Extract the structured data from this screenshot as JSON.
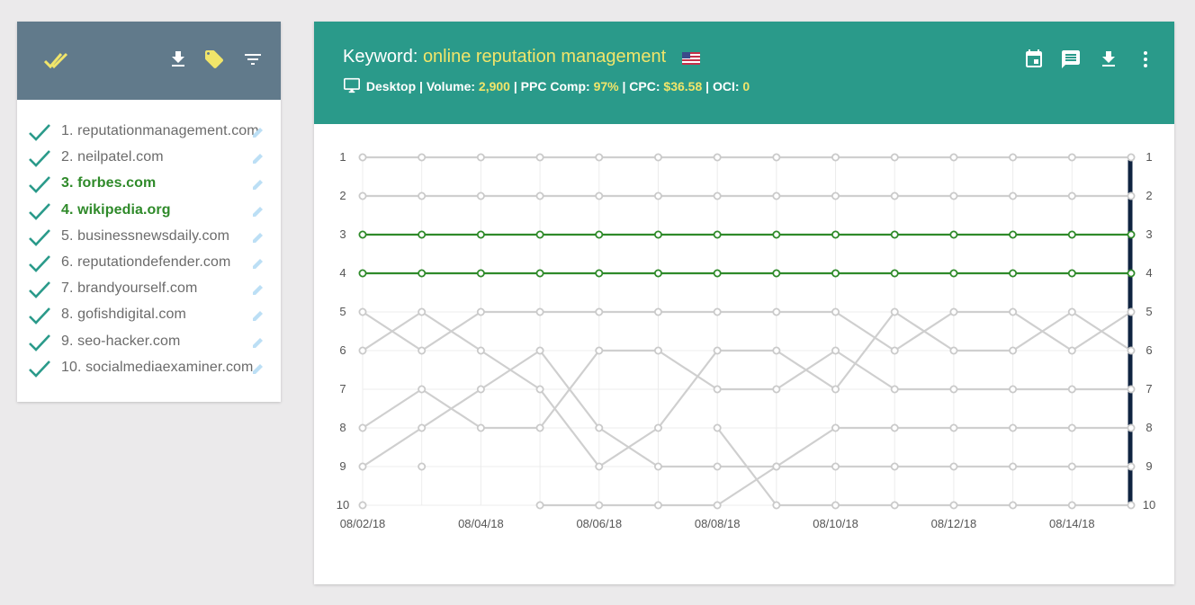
{
  "sidebar": {
    "icons": [
      "double-check-icon",
      "download-icon",
      "tag-icon",
      "filter-icon"
    ],
    "sites": [
      {
        "label": "1. reputationmanagement.com",
        "highlight": false
      },
      {
        "label": "2. neilpatel.com",
        "highlight": false
      },
      {
        "label": "3. forbes.com",
        "highlight": true
      },
      {
        "label": "4. wikipedia.org",
        "highlight": true
      },
      {
        "label": "5. businessnewsdaily.com",
        "highlight": false
      },
      {
        "label": "6. reputationdefender.com",
        "highlight": false
      },
      {
        "label": "7. brandyourself.com",
        "highlight": false
      },
      {
        "label": "8. gofishdigital.com",
        "highlight": false
      },
      {
        "label": "9. seo-hacker.com",
        "highlight": false
      },
      {
        "label": "10. socialmediaexaminer.com",
        "highlight": false
      }
    ]
  },
  "header": {
    "keyword_label": "Keyword:",
    "keyword": "online reputation management",
    "device": "Desktop",
    "volume_label": "Volume:",
    "volume": "2,900",
    "ppc_label": "PPC Comp:",
    "ppc": "97%",
    "cpc_label": "CPC:",
    "cpc": "$36.58",
    "oci_label": "OCI:",
    "oci": "0",
    "icons": [
      "calendar-icon",
      "comment-icon",
      "download-icon",
      "more-vert-icon"
    ]
  },
  "colors": {
    "sidebar_header": "#617a8b",
    "header": "#2a9a8a",
    "accent_yellow": "#f1e56a",
    "highlight_green": "#2f8a2a",
    "check_teal": "#2a9a8a",
    "grey_line": "#cfcfcf",
    "current_marker": "#0f2340"
  },
  "chart_data": {
    "type": "line",
    "x": [
      "08/02/18",
      "08/03/18",
      "08/04/18",
      "08/05/18",
      "08/06/18",
      "08/07/18",
      "08/08/18",
      "08/09/18",
      "08/10/18",
      "08/11/18",
      "08/12/18",
      "08/13/18",
      "08/14/18",
      "08/15/18"
    ],
    "x_tick_labels": [
      "08/02/18",
      "08/04/18",
      "08/06/18",
      "08/08/18",
      "08/10/18",
      "08/12/18",
      "08/14/18"
    ],
    "y_ticks": [
      1,
      2,
      3,
      4,
      5,
      6,
      7,
      8,
      9,
      10
    ],
    "y_reversed": true,
    "ylim": [
      1,
      10
    ],
    "grid": true,
    "series": [
      {
        "values": [
          1,
          1,
          1,
          1,
          1,
          1,
          1,
          1,
          1,
          1,
          1,
          1,
          1,
          1
        ],
        "highlight": false
      },
      {
        "values": [
          2,
          2,
          2,
          2,
          2,
          2,
          2,
          2,
          2,
          2,
          2,
          2,
          2,
          2
        ],
        "highlight": false
      },
      {
        "values": [
          3,
          3,
          3,
          3,
          3,
          3,
          3,
          3,
          3,
          3,
          3,
          3,
          3,
          3
        ],
        "highlight": true
      },
      {
        "values": [
          4,
          4,
          4,
          4,
          4,
          4,
          4,
          4,
          4,
          4,
          4,
          4,
          4,
          4
        ],
        "highlight": true
      },
      {
        "values": [
          5,
          6,
          5,
          5,
          5,
          5,
          5,
          5,
          5,
          6,
          5,
          5,
          6,
          5
        ],
        "highlight": false
      },
      {
        "values": [
          6,
          5,
          6,
          7,
          9,
          8,
          6,
          6,
          7,
          5,
          6,
          6,
          5,
          6
        ],
        "highlight": false
      },
      {
        "values": [
          8,
          7,
          8,
          8,
          6,
          6,
          7,
          7,
          6,
          7,
          7,
          7,
          7,
          7
        ],
        "highlight": false
      },
      {
        "values": [
          9,
          8,
          7,
          6,
          8,
          9,
          9,
          9,
          8,
          8,
          8,
          8,
          8,
          8
        ],
        "highlight": false
      },
      {
        "values": [
          null,
          9,
          null,
          10,
          10,
          10,
          10,
          9,
          9,
          9,
          9,
          9,
          9,
          9
        ],
        "highlight": false
      },
      {
        "values": [
          10,
          null,
          null,
          null,
          null,
          null,
          8,
          10,
          10,
          10,
          10,
          10,
          10,
          10
        ],
        "highlight": false
      }
    ]
  }
}
